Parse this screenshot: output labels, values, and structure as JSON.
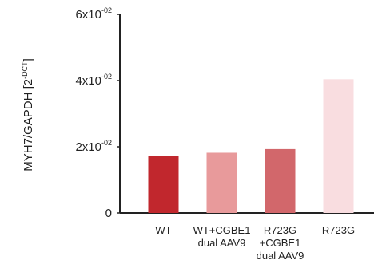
{
  "chart_data": {
    "type": "bar",
    "title": "",
    "xlabel": "",
    "ylabel": "MYH7/GAPDH [2",
    "ylabel_sup": "-DCT",
    "ylabel_close": "]",
    "ylim": [
      0,
      0.06
    ],
    "grid": false,
    "legend": "none",
    "yticks": [
      {
        "value": 0,
        "label": "0",
        "sup": ""
      },
      {
        "value": 0.02,
        "label": "2x10",
        "sup": "-02"
      },
      {
        "value": 0.04,
        "label": "4x10",
        "sup": "-02"
      },
      {
        "value": 0.06,
        "label": "6x10",
        "sup": "-02"
      }
    ],
    "categories": [
      {
        "lines": [
          "WT"
        ]
      },
      {
        "lines": [
          "WT+CGBE1",
          "dual AAV9"
        ]
      },
      {
        "lines": [
          "R723G",
          "+CGBE1",
          "dual AAV9"
        ]
      },
      {
        "lines": [
          "R723G"
        ]
      }
    ],
    "values": [
      0.0172,
      0.0182,
      0.0193,
      0.0404
    ],
    "colors": [
      "#c1272d",
      "#e89a9b",
      "#d2676b",
      "#f9dde0"
    ],
    "axis_color": "#222222"
  }
}
